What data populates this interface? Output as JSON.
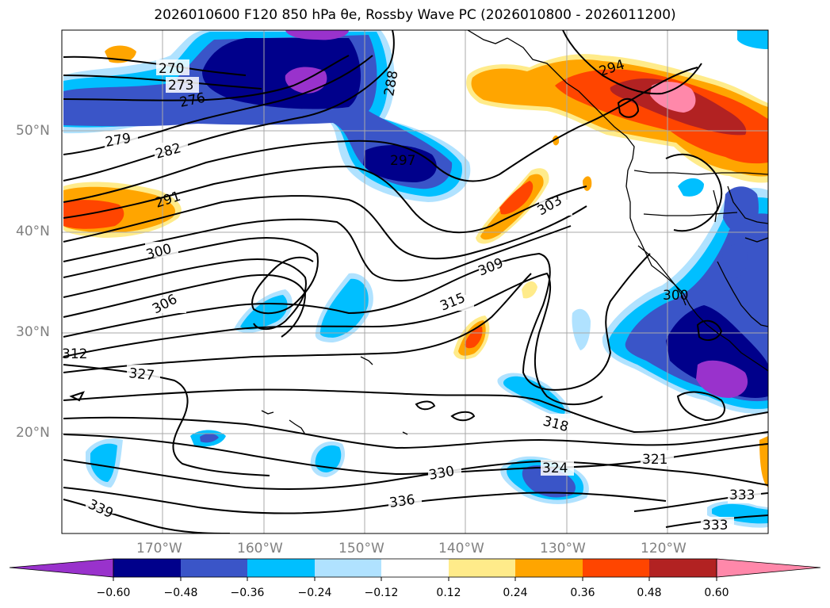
{
  "title": "2026010600 F120 850 hPa θe, Rossby Wave PC (2026010800 - 2026011200)",
  "map": {
    "lon_range": [
      -180,
      -110
    ],
    "lat_range": [
      10,
      60
    ],
    "lon_ticks": [
      {
        "value": -170,
        "label": "170°W"
      },
      {
        "value": -160,
        "label": "160°W"
      },
      {
        "value": -150,
        "label": "150°W"
      },
      {
        "value": -140,
        "label": "140°W"
      },
      {
        "value": -130,
        "label": "130°W"
      },
      {
        "value": -120,
        "label": "120°W"
      }
    ],
    "lat_ticks": [
      {
        "value": 20,
        "label": "20°N"
      },
      {
        "value": 30,
        "label": "30°N"
      },
      {
        "value": 40,
        "label": "40°N"
      },
      {
        "value": 50,
        "label": "50°N"
      }
    ],
    "grid": true,
    "contour_field": "850 hPa theta-e",
    "contour_labels": [
      "270",
      "273",
      "276",
      "279",
      "282",
      "288",
      "291",
      "294",
      "297",
      "300",
      "303",
      "306",
      "309",
      "312",
      "315",
      "318",
      "321",
      "324",
      "327",
      "330",
      "333",
      "336",
      "339"
    ]
  },
  "colorbar": {
    "levels": [
      "−0.60",
      "−0.48",
      "−0.36",
      "−0.24",
      "−0.12",
      "0.12",
      "0.24",
      "0.36",
      "0.48",
      "0.60"
    ],
    "colors": [
      "#9932CC",
      "#00008B",
      "#3A55C8",
      "#00BFFF",
      "#B0E2FF",
      "#FFFFFF",
      "#FFEB8A",
      "#FFA500",
      "#FF4500",
      "#B22222",
      "#FF88AA"
    ],
    "extend": "both"
  },
  "colors": {
    "grid": "#a9a9a9",
    "tick_label": "#808080",
    "contour": "#000000"
  }
}
